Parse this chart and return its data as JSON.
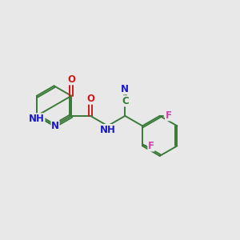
{
  "bg_color": "#e8e8e8",
  "bond_color": "#3a7a3a",
  "bond_width": 1.4,
  "atom_colors": {
    "N": "#1a1acc",
    "O": "#cc1a1a",
    "F": "#cc44aa",
    "C": "#3a7a3a"
  },
  "font_size": 8.5,
  "fig_size": [
    3.0,
    3.0
  ],
  "dpi": 100
}
